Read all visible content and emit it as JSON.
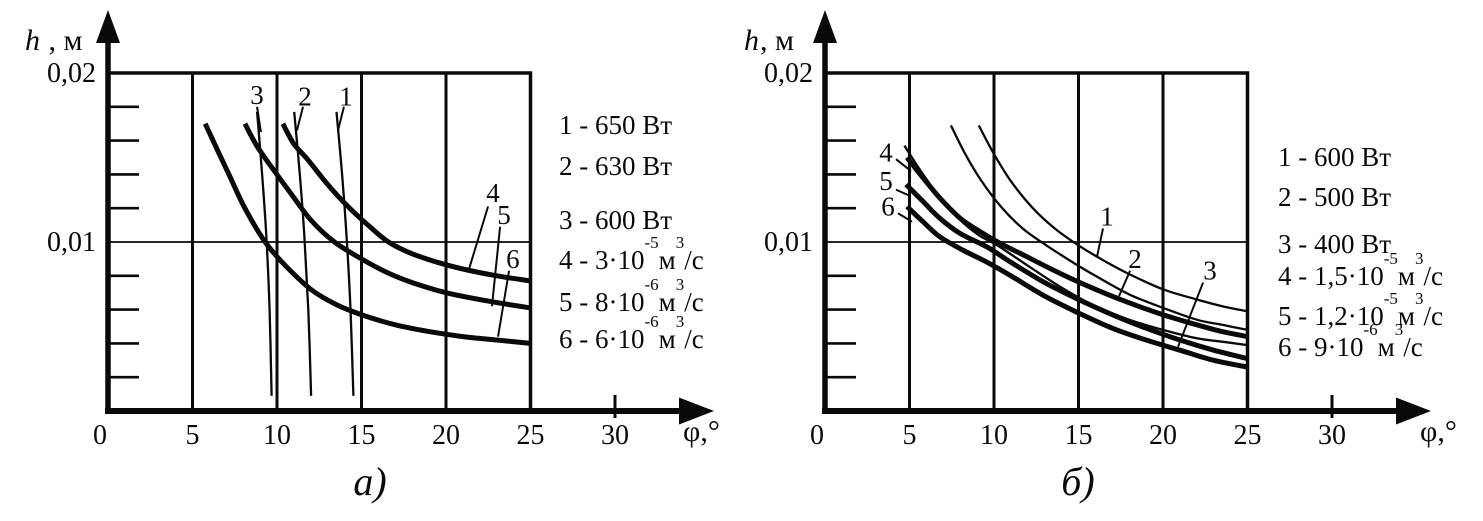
{
  "chart_data": [
    {
      "type": "line",
      "caption": "а)",
      "xlabel": "φ,°",
      "ylabel_var": "h",
      "ylabel_rest": " , м",
      "x_range": [
        0,
        30
      ],
      "x_plot_max": 25,
      "y_range": [
        0,
        0.02
      ],
      "x_ticks": [
        "0",
        "5",
        "10",
        "15",
        "20",
        "25",
        "30"
      ],
      "y_tick_labels": [
        "0,02",
        "0,01"
      ],
      "y_tick_values": [
        0.02,
        0.01
      ],
      "y_minor_step": 0.002,
      "grid": true,
      "legend_position": "right",
      "legend": [
        {
          "a": "1 - 650 Вт",
          "s1": "",
          "b": "",
          "s2": "",
          "c": ""
        },
        {
          "a": "2 - 630 Вт",
          "s1": "",
          "b": "",
          "s2": "",
          "c": ""
        },
        {
          "a": "3 - 600 Вт",
          "s1": "",
          "b": "",
          "s2": "",
          "c": ""
        },
        {
          "a": "4 - 3·10",
          "s1": "-5",
          "b": "м",
          "s2": "3",
          "c": "/с"
        },
        {
          "a": "5 - 8·10",
          "s1": "-6",
          "b": "м",
          "s2": "3",
          "c": "/с"
        },
        {
          "a": "6 - 6·10",
          "s1": "-6",
          "b": "м",
          "s2": "3",
          "c": "/с"
        }
      ],
      "series": [
        {
          "name": "1",
          "style": "thin",
          "label_x": 14.08,
          "label_y": 0.0186,
          "leader": [
            13.96,
            0.018,
            13.61,
            0.0166
          ],
          "points": [
            [
              13.52,
              0.0177
            ],
            [
              13.85,
              0.014
            ],
            [
              14.12,
              0.0103
            ],
            [
              14.35,
              0.006
            ],
            [
              14.52,
              0.0009
            ]
          ]
        },
        {
          "name": "2",
          "style": "thin",
          "label_x": 11.66,
          "label_y": 0.0186,
          "leader": [
            11.54,
            0.018,
            11.18,
            0.0166
          ],
          "points": [
            [
              11.02,
              0.0177
            ],
            [
              11.35,
              0.014
            ],
            [
              11.62,
              0.0103
            ],
            [
              11.85,
              0.006
            ],
            [
              12.02,
              0.0009
            ]
          ]
        },
        {
          "name": "3",
          "style": "thin",
          "label_x": 8.82,
          "label_y": 0.0187,
          "leader": [
            8.82,
            0.018,
            9.05,
            0.0165
          ],
          "points": [
            [
              8.82,
              0.0177
            ],
            [
              9.12,
              0.014
            ],
            [
              9.37,
              0.0103
            ],
            [
              9.56,
              0.006
            ],
            [
              9.68,
              0.0009
            ]
          ]
        },
        {
          "name": "4",
          "style": "thick",
          "label_x": 22.78,
          "label_y": 0.0129,
          "leader": [
            22.49,
            0.0121,
            21.3,
            0.0082
          ],
          "points": [
            [
              10.35,
              0.017
            ],
            [
              11.0,
              0.0158
            ],
            [
              11.8,
              0.0149
            ],
            [
              13.0,
              0.0134
            ],
            [
              14.2,
              0.0121
            ],
            [
              15.5,
              0.0109
            ],
            [
              16.6,
              0.01
            ],
            [
              18,
              0.0093
            ],
            [
              19.5,
              0.0088
            ],
            [
              21,
              0.0084
            ],
            [
              23,
              0.008
            ],
            [
              25,
              0.0077
            ]
          ]
        },
        {
          "name": "5",
          "style": "thick",
          "label_x": 23.43,
          "label_y": 0.0116,
          "leader": [
            23.2,
            0.0109,
            22.72,
            0.0062
          ],
          "points": [
            [
              8.1,
              0.017
            ],
            [
              8.8,
              0.0157
            ],
            [
              9.7,
              0.0144
            ],
            [
              10.8,
              0.0129
            ],
            [
              12,
              0.0113
            ],
            [
              13.4,
              0.01
            ],
            [
              15,
              0.009
            ],
            [
              16.5,
              0.0082
            ],
            [
              18,
              0.0076
            ],
            [
              20,
              0.007
            ],
            [
              22.5,
              0.0065
            ],
            [
              25,
              0.0061
            ]
          ]
        },
        {
          "name": "6",
          "style": "thick",
          "label_x": 23.96,
          "label_y": 0.009,
          "leader": [
            23.73,
            0.0083,
            23.08,
            0.0044
          ],
          "points": [
            [
              5.75,
              0.017
            ],
            [
              6.4,
              0.0156
            ],
            [
              7.2,
              0.0139
            ],
            [
              8.1,
              0.012
            ],
            [
              9.3,
              0.01
            ],
            [
              10.5,
              0.0086
            ],
            [
              12,
              0.0072
            ],
            [
              13.5,
              0.0063
            ],
            [
              15,
              0.0057
            ],
            [
              17,
              0.0051
            ],
            [
              19,
              0.0047
            ],
            [
              21,
              0.0044
            ],
            [
              23,
              0.0042
            ],
            [
              25,
              0.004
            ]
          ]
        }
      ]
    },
    {
      "type": "line",
      "caption": "б)",
      "xlabel": "φ,°",
      "ylabel_var": "h",
      "ylabel_rest": ", м",
      "x_range": [
        0,
        30
      ],
      "x_plot_max": 25,
      "y_range": [
        0,
        0.02
      ],
      "x_ticks": [
        "0",
        "5",
        "10",
        "15",
        "20",
        "25",
        "30"
      ],
      "y_tick_labels": [
        "0,02",
        "0,01"
      ],
      "y_tick_values": [
        0.02,
        0.01
      ],
      "y_minor_step": 0.002,
      "grid": true,
      "legend_position": "right",
      "legend": [
        {
          "a": "1 - 600 Вт",
          "s1": "",
          "b": "",
          "s2": "",
          "c": ""
        },
        {
          "a": "2 - 500 Вт",
          "s1": "",
          "b": "",
          "s2": "",
          "c": ""
        },
        {
          "a": "3 - 400 Вт",
          "s1": "",
          "b": "",
          "s2": "",
          "c": ""
        },
        {
          "a": "4 - 1,5·10",
          "s1": "-5",
          "b": "м",
          "s2": "3",
          "c": "/с"
        },
        {
          "a": "5 - 1,2·10",
          "s1": "-5",
          "b": "м",
          "s2": "3",
          "c": "/с"
        },
        {
          "a": "6 - 9·10",
          "s1": "-6",
          "b": "м",
          "s2": "3",
          "c": "/с"
        }
      ],
      "series": [
        {
          "name": "1",
          "style": "thin",
          "label_x": 16.69,
          "label_y": 0.0115,
          "leader": [
            16.45,
            0.0108,
            16.09,
            0.0091
          ],
          "points": [
            [
              9.1,
              0.0169
            ],
            [
              10,
              0.0152
            ],
            [
              11,
              0.0136
            ],
            [
              12.3,
              0.012
            ],
            [
              13.6,
              0.0108
            ],
            [
              15,
              0.0098
            ],
            [
              16.5,
              0.0089
            ],
            [
              18,
              0.0081
            ],
            [
              20,
              0.0072
            ],
            [
              22,
              0.0066
            ],
            [
              23.5,
              0.0062
            ],
            [
              25,
              0.0059
            ]
          ]
        },
        {
          "name": "2",
          "style": "thin",
          "label_x": 18.34,
          "label_y": 0.009,
          "leader": [
            18.05,
            0.0083,
            17.4,
            0.0068
          ],
          "points": [
            [
              7.45,
              0.0169
            ],
            [
              8.3,
              0.0152
            ],
            [
              9.2,
              0.0137
            ],
            [
              10.4,
              0.0121
            ],
            [
              11.7,
              0.0108
            ],
            [
              13.1,
              0.0098
            ],
            [
              14.5,
              0.0089
            ],
            [
              16,
              0.008
            ],
            [
              18,
              0.0069
            ],
            [
              20,
              0.0061
            ],
            [
              22,
              0.0054
            ],
            [
              23.5,
              0.0051
            ],
            [
              25,
              0.0048
            ]
          ]
        },
        {
          "name": "3",
          "style": "thin",
          "label_x": 22.78,
          "label_y": 0.0083,
          "leader": [
            22.37,
            0.0076,
            20.89,
            0.0038
          ],
          "points": [
            [
              4.7,
              0.0157
            ],
            [
              5.6,
              0.0143
            ],
            [
              6.6,
              0.0129
            ],
            [
              7.9,
              0.0114
            ],
            [
              9.1,
              0.0104
            ],
            [
              10.2,
              0.0098
            ],
            [
              12,
              0.0086
            ],
            [
              14,
              0.0073
            ],
            [
              16,
              0.0062
            ],
            [
              18,
              0.0054
            ],
            [
              20,
              0.0048
            ],
            [
              22,
              0.0043
            ],
            [
              23.5,
              0.0041
            ],
            [
              25,
              0.0039
            ]
          ]
        },
        {
          "name": "4",
          "style": "thick",
          "label_x": 3.61,
          "label_y": 0.0153,
          "leader": [
            4.2,
            0.0149,
            5.09,
            0.0142
          ],
          "points": [
            [
              4.85,
              0.015
            ],
            [
              5.8,
              0.0138
            ],
            [
              6.8,
              0.0126
            ],
            [
              8.0,
              0.0114
            ],
            [
              9.2,
              0.0106
            ],
            [
              10.4,
              0.0099
            ],
            [
              12,
              0.0091
            ],
            [
              14,
              0.0081
            ],
            [
              16,
              0.0072
            ],
            [
              18,
              0.0064
            ],
            [
              20,
              0.0057
            ],
            [
              22,
              0.0051
            ],
            [
              23.5,
              0.0047
            ],
            [
              25,
              0.0044
            ]
          ]
        },
        {
          "name": "5",
          "style": "thick",
          "label_x": 3.61,
          "label_y": 0.0136,
          "leader": [
            4.2,
            0.0131,
            5.09,
            0.0127
          ],
          "points": [
            [
              4.8,
              0.0134
            ],
            [
              5.8,
              0.0124
            ],
            [
              6.8,
              0.0114
            ],
            [
              8.0,
              0.0105
            ],
            [
              9.6,
              0.0097
            ],
            [
              11,
              0.0088
            ],
            [
              13,
              0.0076
            ],
            [
              15,
              0.0066
            ],
            [
              17,
              0.0057
            ],
            [
              19,
              0.0049
            ],
            [
              21,
              0.0042
            ],
            [
              23,
              0.0036
            ],
            [
              25,
              0.0031
            ]
          ]
        },
        {
          "name": "6",
          "style": "thick",
          "label_x": 3.73,
          "label_y": 0.0121,
          "leader": [
            4.32,
            0.0117,
            5.15,
            0.0112
          ],
          "points": [
            [
              4.85,
              0.0121
            ],
            [
              5.8,
              0.0112
            ],
            [
              6.8,
              0.0103
            ],
            [
              8.2,
              0.0095
            ],
            [
              9.6,
              0.0088
            ],
            [
              11,
              0.008
            ],
            [
              13,
              0.0068
            ],
            [
              15,
              0.0058
            ],
            [
              17,
              0.0049
            ],
            [
              19,
              0.0042
            ],
            [
              21,
              0.0036
            ],
            [
              23,
              0.003
            ],
            [
              25,
              0.0026
            ]
          ]
        }
      ]
    }
  ]
}
